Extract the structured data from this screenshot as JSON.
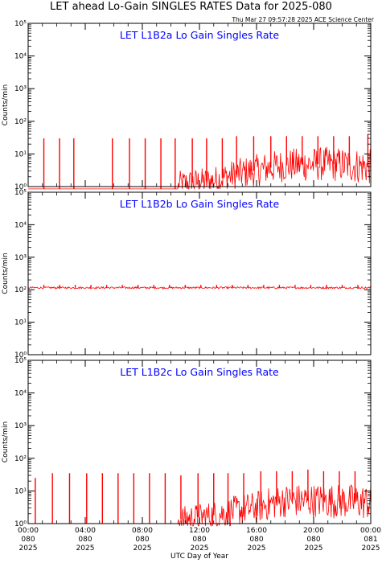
{
  "title": "LET ahead Lo-Gain SINGLES RATES Data for 2025-080",
  "timestamp": "Thu Mar 27 09:57:28 2025 ACE Science Center",
  "xlabel": "UTC Day of Year",
  "colors": {
    "data": "#ff0000",
    "panel_title": "#0000ff",
    "axes": "#000000"
  },
  "chart_data": [
    {
      "type": "line",
      "title": "LET L1B2a Lo Gain Singles Rate",
      "ylabel": "Counts/min",
      "yscale": "log",
      "ylim": [
        1,
        100000
      ],
      "ytick_labels": [
        "10⁰",
        "10¹",
        "10²",
        "10³",
        "10⁴",
        "10⁵"
      ],
      "xlim": [
        0,
        24
      ],
      "series": [
        {
          "style": "noisy",
          "baseline": [
            [
              0,
              0.8
            ],
            [
              10.5,
              0.8
            ],
            [
              10.5,
              1.2
            ],
            [
              13,
              1.5
            ],
            [
              15.8,
              3
            ],
            [
              18,
              4.5
            ],
            [
              21,
              5
            ],
            [
              24,
              4
            ]
          ],
          "noise_amplitude": [
            [
              0,
              0
            ],
            [
              10.5,
              0
            ],
            [
              10.6,
              0.4
            ],
            [
              15.8,
              0.5
            ],
            [
              24,
              0.55
            ]
          ],
          "spikes": [
            [
              1.1,
              30
            ],
            [
              2.2,
              30
            ],
            [
              3.2,
              30
            ],
            [
              5.9,
              30
            ],
            [
              7.1,
              30
            ],
            [
              8.2,
              30
            ],
            [
              9.3,
              30
            ],
            [
              10.3,
              30
            ],
            [
              11.5,
              30
            ],
            [
              12.5,
              30
            ],
            [
              13.6,
              30
            ],
            [
              14.6,
              35
            ],
            [
              15.8,
              35
            ],
            [
              17,
              35
            ],
            [
              18.1,
              35
            ],
            [
              19.2,
              35
            ],
            [
              20.3,
              35
            ],
            [
              21.4,
              35
            ],
            [
              22.5,
              35
            ],
            [
              23.8,
              40
            ]
          ]
        }
      ]
    },
    {
      "type": "line",
      "title": "LET L1B2b Lo Gain Singles Rate",
      "ylabel": "Counts/min",
      "yscale": "log",
      "ylim": [
        1,
        100000
      ],
      "ytick_labels": [
        "10⁰",
        "10¹",
        "10²",
        "10³",
        "10⁴",
        "10⁵"
      ],
      "xlim": [
        0,
        24
      ],
      "series": [
        {
          "style": "flat",
          "baseline": [
            [
              0,
              115
            ],
            [
              24,
              115
            ]
          ],
          "noise_amplitude": [
            [
              0,
              0.03
            ],
            [
              24,
              0.03
            ]
          ],
          "spikes": [
            [
              1.1,
              140
            ],
            [
              2.2,
              140
            ],
            [
              3.3,
              140
            ],
            [
              4.4,
              140
            ],
            [
              5.5,
              140
            ],
            [
              6.6,
              140
            ],
            [
              7.7,
              140
            ],
            [
              8.8,
              140
            ],
            [
              9.9,
              140
            ],
            [
              11,
              140
            ],
            [
              12.1,
              140
            ],
            [
              13.2,
              140
            ],
            [
              14.3,
              140
            ],
            [
              15.4,
              140
            ],
            [
              16.5,
              140
            ],
            [
              17.6,
              140
            ],
            [
              18.7,
              140
            ],
            [
              19.8,
              140
            ],
            [
              20.9,
              140
            ],
            [
              22,
              140
            ],
            [
              23.1,
              140
            ]
          ]
        }
      ]
    },
    {
      "type": "line",
      "title": "LET L1B2c Lo Gain Singles Rate",
      "ylabel": "Counts/min",
      "yscale": "log",
      "ylim": [
        1,
        100000
      ],
      "ytick_labels": [
        "10⁰",
        "10¹",
        "10²",
        "10³",
        "10⁴",
        "10⁵"
      ],
      "xlim": [
        0,
        24
      ],
      "series": [
        {
          "style": "noisy",
          "baseline": [
            [
              0,
              1
            ],
            [
              10.5,
              1
            ],
            [
              10.5,
              1.3
            ],
            [
              13,
              1.8
            ],
            [
              15.8,
              3
            ],
            [
              18,
              5
            ],
            [
              21,
              5
            ],
            [
              24,
              4.5
            ]
          ],
          "noise_amplitude": [
            [
              0,
              0
            ],
            [
              10.5,
              0
            ],
            [
              10.6,
              0.4
            ],
            [
              15.8,
              0.5
            ],
            [
              24,
              0.55
            ]
          ],
          "spikes": [
            [
              0.5,
              25
            ],
            [
              1.7,
              35
            ],
            [
              2.9,
              35
            ],
            [
              4.1,
              35
            ],
            [
              5.2,
              35
            ],
            [
              6.3,
              35
            ],
            [
              7.4,
              35
            ],
            [
              8.5,
              35
            ],
            [
              9.6,
              35
            ],
            [
              10.7,
              30
            ],
            [
              11.9,
              35
            ],
            [
              13,
              35
            ],
            [
              14,
              35
            ],
            [
              15.1,
              35
            ],
            [
              16.3,
              40
            ],
            [
              17.4,
              40
            ],
            [
              18.5,
              40
            ],
            [
              19.6,
              45
            ],
            [
              20.7,
              40
            ],
            [
              21.8,
              40
            ],
            [
              22.9,
              40
            ],
            [
              24,
              10
            ]
          ]
        }
      ]
    }
  ],
  "xaxis": {
    "hours": [
      0,
      4,
      8,
      12,
      16,
      20,
      24
    ],
    "tick_labels": [
      [
        "00:00",
        "080",
        "2025"
      ],
      [
        "04:00",
        "080",
        "2025"
      ],
      [
        "08:00",
        "080",
        "2025"
      ],
      [
        "12:00",
        "080",
        "2025"
      ],
      [
        "16:00",
        "080",
        "2025"
      ],
      [
        "20:00",
        "080",
        "2025"
      ],
      [
        "00:00",
        "081",
        "2025"
      ]
    ]
  }
}
